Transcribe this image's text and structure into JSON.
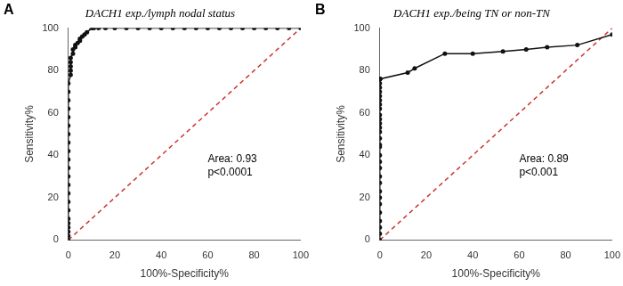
{
  "chart_data": [
    {
      "type": "line",
      "title": "DACH1 exp./lymph nodal status",
      "panel_label": "A",
      "annotation": "Area: 0.93\np<0.0001",
      "xlabel": "100%-Specificity%",
      "ylabel": "Sensitivity%",
      "xlim": [
        0,
        100
      ],
      "ylim": [
        0,
        100
      ],
      "xticks": [
        0,
        20,
        40,
        60,
        80,
        100
      ],
      "yticks": [
        0,
        20,
        40,
        60,
        80,
        100
      ],
      "grid": false,
      "series": [
        {
          "color": "#111111",
          "marker": "circle",
          "line_style": "solid",
          "x": [
            0,
            0,
            0,
            0,
            0,
            0,
            0,
            0,
            0,
            0,
            0,
            0,
            0,
            0,
            0,
            0,
            0,
            0,
            0,
            0,
            0,
            0,
            1,
            1,
            1,
            1,
            1,
            2,
            2,
            3,
            3,
            4,
            5,
            5,
            6,
            7,
            8,
            10,
            11,
            13,
            16,
            20,
            25,
            30,
            35,
            40,
            45,
            50,
            55,
            60,
            65,
            70,
            75,
            80,
            85,
            90,
            95,
            100
          ],
          "values": [
            0,
            2,
            4,
            6,
            8,
            10,
            14,
            18,
            22,
            26,
            30,
            34,
            38,
            42,
            46,
            50,
            54,
            58,
            62,
            66,
            70,
            74,
            78,
            80,
            82,
            84,
            86,
            88,
            90,
            91,
            92,
            93,
            94,
            95,
            96,
            97,
            98,
            100,
            100,
            100,
            100,
            100,
            100,
            100,
            100,
            100,
            100,
            100,
            100,
            100,
            100,
            100,
            100,
            100,
            100,
            100,
            100,
            100
          ]
        },
        {
          "color": "#cc3333",
          "marker": "none",
          "line_style": "dashed",
          "x": [
            0,
            100
          ],
          "values": [
            0,
            100
          ]
        }
      ]
    },
    {
      "type": "line",
      "title": "DACH1 exp./being TN or non-TN",
      "panel_label": "B",
      "annotation": "Area: 0.89\np<0.001",
      "xlabel": "100%-Specificity%",
      "ylabel": "Sensitivity%",
      "xlim": [
        0,
        100
      ],
      "ylim": [
        0,
        100
      ],
      "xticks": [
        0,
        20,
        40,
        60,
        80,
        100
      ],
      "yticks": [
        0,
        20,
        40,
        60,
        80,
        100
      ],
      "grid": false,
      "series": [
        {
          "color": "#111111",
          "marker": "circle",
          "line_style": "solid",
          "x": [
            0,
            0,
            0,
            0,
            0,
            0,
            0,
            0,
            0,
            0,
            0,
            0,
            0,
            0,
            0,
            0,
            0,
            0,
            0,
            0,
            0,
            0,
            0,
            0,
            0,
            0,
            0,
            0,
            0,
            0,
            0,
            0,
            0,
            0,
            0,
            0,
            0,
            0,
            0,
            12,
            15,
            28,
            40,
            53,
            63,
            72,
            85,
            100
          ],
          "values": [
            0,
            3,
            6,
            9,
            13,
            17,
            20,
            23,
            27,
            30,
            34,
            37,
            40,
            44,
            45,
            48,
            51,
            53,
            55,
            57,
            59,
            62,
            64,
            66,
            68,
            70,
            72,
            74,
            76,
            76,
            76,
            76,
            76,
            76,
            76,
            76,
            76,
            76,
            76,
            79,
            81,
            88,
            88,
            89,
            90,
            91,
            92,
            97
          ]
        },
        {
          "color": "#cc3333",
          "marker": "none",
          "line_style": "dashed",
          "x": [
            0,
            100
          ],
          "values": [
            0,
            100
          ]
        }
      ]
    }
  ]
}
